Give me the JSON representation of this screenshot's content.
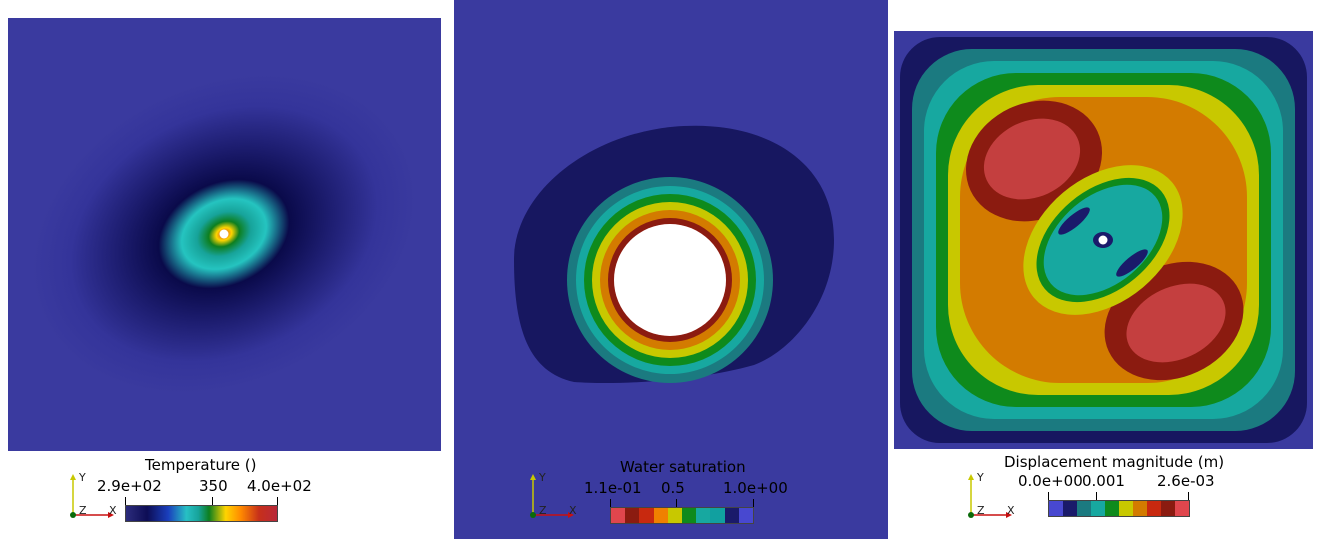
{
  "colors": {
    "background": "#3a3a9f",
    "page": "#ffffff"
  },
  "panels": [
    {
      "legend_title": "Temperature ()",
      "ticks": [
        "2.9e+02",
        "350",
        "4.0e+02"
      ],
      "colorbar_type": "continuous"
    },
    {
      "legend_title": "Water saturation",
      "ticks": [
        "1.1e-01",
        "0.5",
        "1.0e+00"
      ],
      "colorbar_type": "discrete"
    },
    {
      "legend_title": "Displacement magnitude (m)",
      "ticks": [
        "0.0e+00",
        "0.001",
        "2.6e-03"
      ],
      "colorbar_type": "discrete"
    }
  ],
  "axes_labels": {
    "y": "Y",
    "x": "X",
    "z": "Z"
  }
}
